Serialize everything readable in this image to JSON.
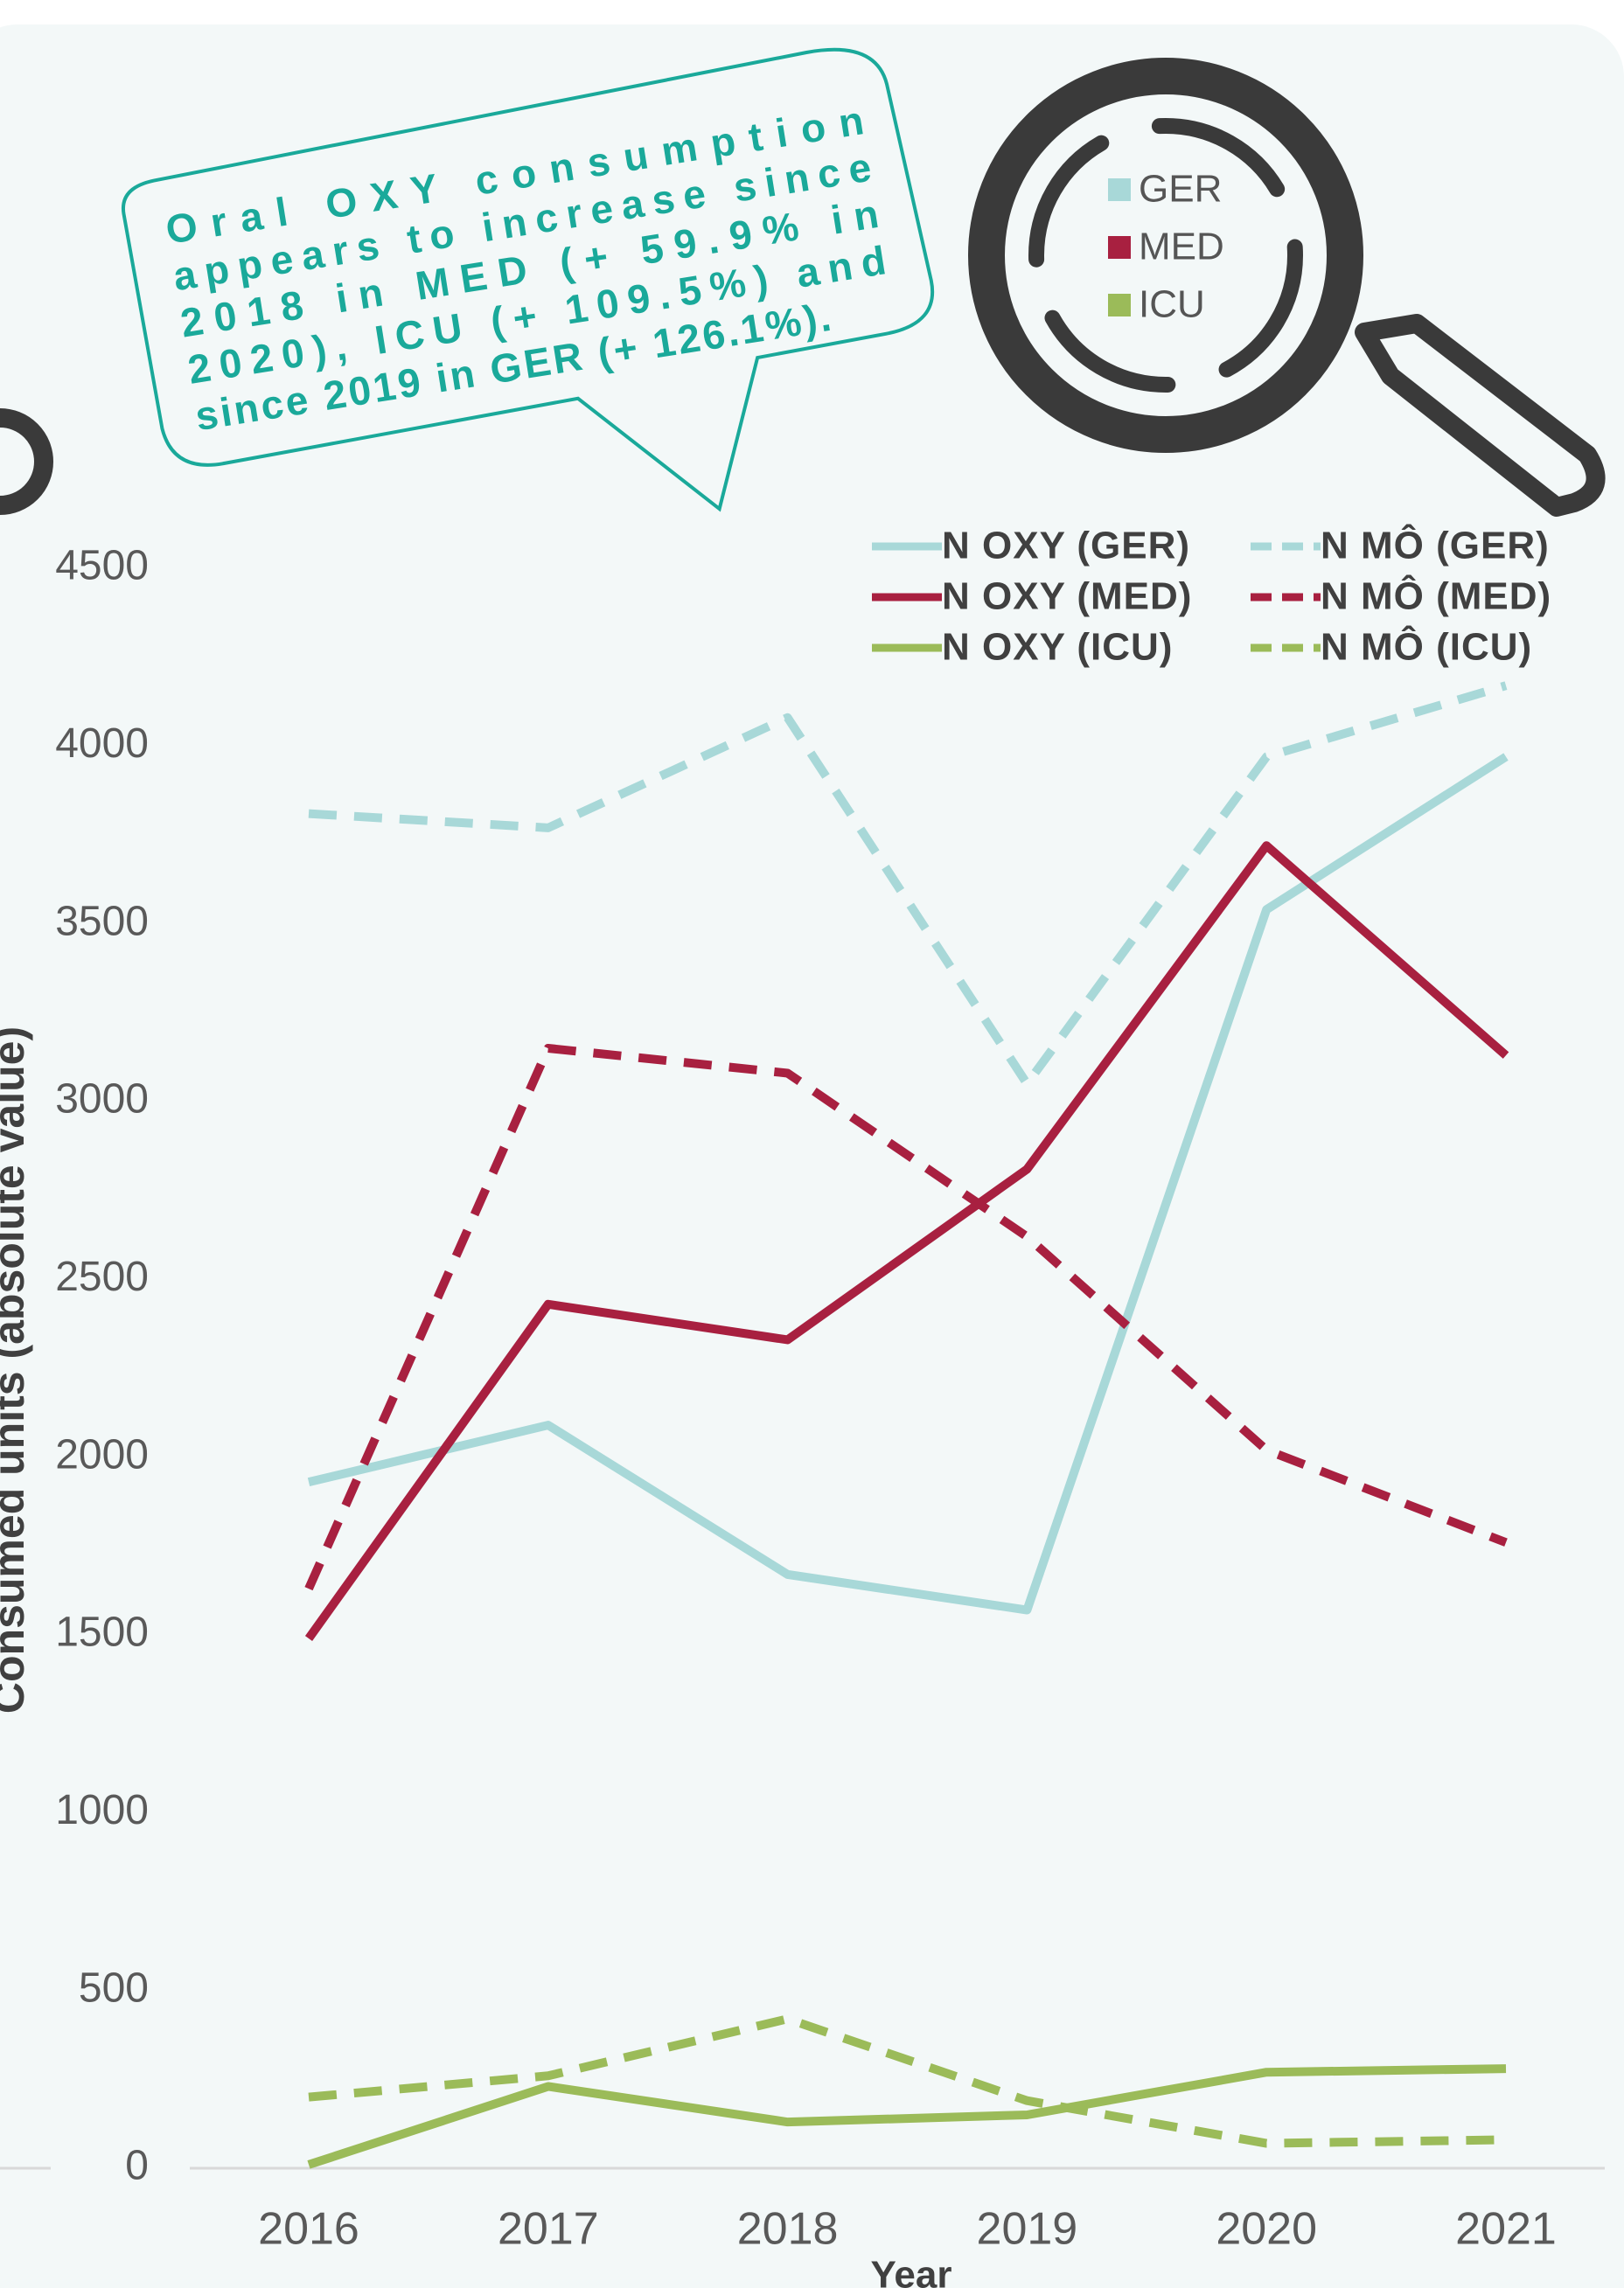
{
  "chart_data": {
    "type": "line",
    "annotation": [
      "Oral OXY consumption",
      "appears to increase since",
      "2018 in MED (+ 59.9% in",
      "2020), ICU (+ 109.5%) and",
      "since 2019 in GER (+ 126.1%)."
    ],
    "icon_legend": [
      {
        "label": "GER",
        "color": "#a8d8d8"
      },
      {
        "label": "MED",
        "color": "#a82040"
      },
      {
        "label": "ICU",
        "color": "#9bbb59"
      }
    ],
    "x_label": "Year",
    "y_label": "Consumed units (absolute value)",
    "categories": [
      "2016",
      "2017",
      "2018",
      "2019",
      "2020",
      "2021"
    ],
    "series": [
      {
        "name": "N OXY (GER)",
        "color": "#a8d8d8",
        "dashed": false,
        "values": [
          1930,
          2090,
          1670,
          1570,
          3540,
          3970
        ]
      },
      {
        "name": "N OXY (MED)",
        "color": "#a82040",
        "dashed": false,
        "values": [
          1490,
          2430,
          2330,
          2810,
          3720,
          3130
        ]
      },
      {
        "name": "N OXY (ICU)",
        "color": "#9bbb59",
        "dashed": false,
        "values": [
          10,
          230,
          130,
          150,
          270,
          280
        ]
      },
      {
        "name": "N MÔ (GER)",
        "color": "#a8d8d8",
        "dashed": true,
        "values": [
          3810,
          3770,
          4080,
          3050,
          3970,
          4170
        ]
      },
      {
        "name": "N MÔ (MED)",
        "color": "#a82040",
        "dashed": true,
        "values": [
          1630,
          3150,
          3080,
          2620,
          2020,
          1760
        ]
      },
      {
        "name": "N MÔ (ICU)",
        "color": "#9bbb59",
        "dashed": true,
        "values": [
          200,
          260,
          420,
          190,
          70,
          80
        ]
      }
    ],
    "ylim": [
      0,
      4500
    ],
    "yticks": [
      0,
      500,
      1000,
      1500,
      2000,
      2500,
      3000,
      3500,
      4000,
      4500
    ],
    "grid": false
  }
}
